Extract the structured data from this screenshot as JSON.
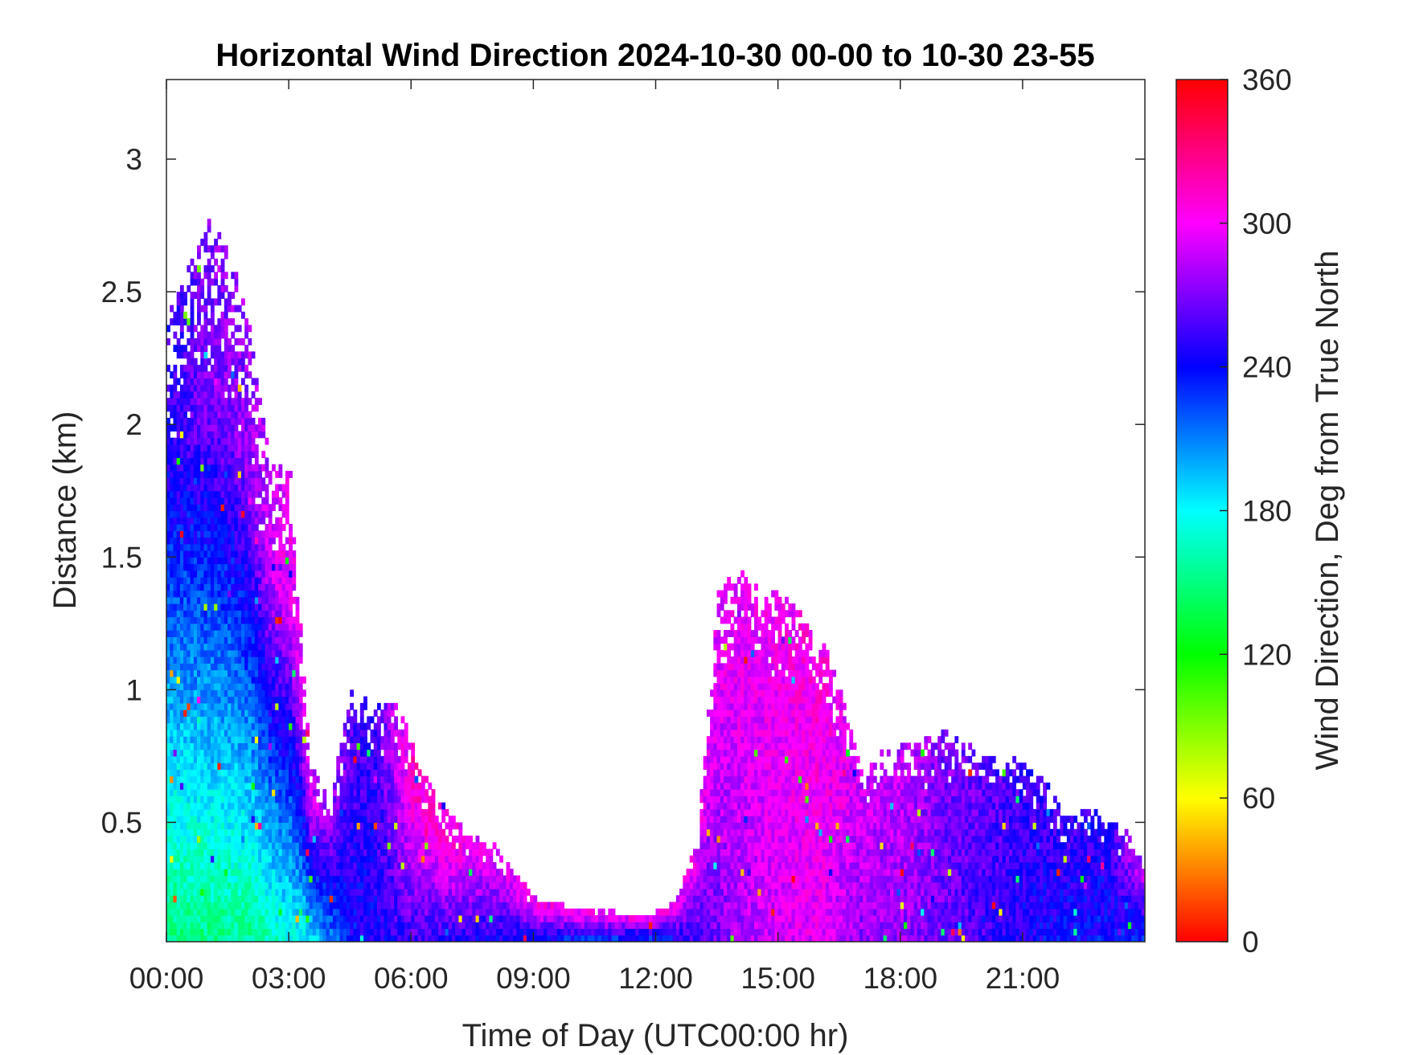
{
  "chart_data": {
    "type": "heatmap",
    "title": "Horizontal Wind Direction 2024-10-30 00-00 to 10-30 23-55",
    "xlabel": "Time of Day (UTC00:00 hr)",
    "ylabel": "Distance (km)",
    "colorbar_label": "Wind Direction, Deg from True North",
    "x_range_hours": [
      0,
      24
    ],
    "y_range_km": [
      0.05,
      3.3
    ],
    "x_ticks": [
      0,
      3,
      6,
      9,
      12,
      15,
      18,
      21
    ],
    "x_tick_labels": [
      "00:00",
      "03:00",
      "06:00",
      "09:00",
      "12:00",
      "15:00",
      "18:00",
      "21:00"
    ],
    "y_ticks": [
      0.5,
      1,
      1.5,
      2,
      2.5,
      3
    ],
    "y_tick_labels": [
      "0.5",
      "1",
      "1.5",
      "2",
      "2.5",
      "3"
    ],
    "colorbar_range": [
      0,
      360
    ],
    "colorbar_ticks": [
      0,
      60,
      120,
      180,
      240,
      300,
      360
    ],
    "colorbar_tick_labels": [
      "0",
      "60",
      "120",
      "180",
      "240",
      "300",
      "360"
    ],
    "colormap": [
      "#ff0000",
      "#ffff00",
      "#00ff00",
      "#00ffff",
      "#0000ff",
      "#ff00ff",
      "#ff0000"
    ],
    "time_step_minutes": 5,
    "range_gate_km": 0.025,
    "data_top_height_km": [
      [
        0.0,
        2.4
      ],
      [
        1.0,
        2.75
      ],
      [
        1.5,
        2.65
      ],
      [
        2.0,
        2.35
      ],
      [
        2.5,
        1.85
      ],
      [
        3.0,
        1.8
      ],
      [
        3.5,
        0.7
      ],
      [
        4.0,
        0.6
      ],
      [
        4.5,
        1.0
      ],
      [
        5.0,
        0.95
      ],
      [
        5.5,
        0.95
      ],
      [
        6.0,
        0.8
      ],
      [
        6.5,
        0.6
      ],
      [
        7.0,
        0.5
      ],
      [
        7.5,
        0.45
      ],
      [
        8.0,
        0.4
      ],
      [
        9.0,
        0.2
      ],
      [
        10.0,
        0.17
      ],
      [
        11.0,
        0.15
      ],
      [
        12.0,
        0.15
      ],
      [
        12.5,
        0.2
      ],
      [
        13.0,
        0.45
      ],
      [
        13.5,
        1.35
      ],
      [
        14.0,
        1.45
      ],
      [
        14.5,
        1.4
      ],
      [
        15.0,
        1.35
      ],
      [
        15.5,
        1.3
      ],
      [
        16.0,
        1.2
      ],
      [
        16.5,
        1.0
      ],
      [
        17.0,
        0.7
      ],
      [
        17.5,
        0.75
      ],
      [
        18.0,
        0.8
      ],
      [
        18.5,
        0.8
      ],
      [
        19.0,
        0.85
      ],
      [
        19.5,
        0.8
      ],
      [
        20.0,
        0.75
      ],
      [
        20.5,
        0.75
      ],
      [
        21.0,
        0.7
      ],
      [
        21.5,
        0.65
      ],
      [
        22.0,
        0.5
      ],
      [
        22.5,
        0.55
      ],
      [
        23.0,
        0.5
      ],
      [
        23.5,
        0.45
      ],
      [
        24.0,
        0.35
      ]
    ],
    "dominant_direction_deg": [
      [
        0.0,
        150
      ],
      [
        2.0,
        155
      ],
      [
        3.5,
        185
      ],
      [
        4.5,
        240
      ],
      [
        6.0,
        255
      ],
      [
        8.0,
        245
      ],
      [
        10.0,
        235
      ],
      [
        12.0,
        235
      ],
      [
        13.0,
        255
      ],
      [
        14.0,
        280
      ],
      [
        15.0,
        290
      ],
      [
        16.0,
        295
      ],
      [
        17.0,
        275
      ],
      [
        18.0,
        275
      ],
      [
        19.0,
        265
      ],
      [
        20.0,
        255
      ],
      [
        21.0,
        245
      ],
      [
        22.0,
        240
      ],
      [
        23.0,
        238
      ],
      [
        24.0,
        235
      ]
    ],
    "aloft_direction_deg": [
      [
        0.0,
        250
      ],
      [
        1.0,
        270
      ],
      [
        2.0,
        275
      ],
      [
        3.0,
        300
      ],
      [
        5.0,
        250
      ],
      [
        6.0,
        310
      ],
      [
        7.0,
        305
      ],
      [
        8.0,
        290
      ],
      [
        9.0,
        300
      ],
      [
        13.0,
        295
      ],
      [
        15.0,
        300
      ],
      [
        16.0,
        305
      ],
      [
        17.0,
        290
      ],
      [
        18.0,
        285
      ],
      [
        19.0,
        270
      ],
      [
        21.0,
        255
      ],
      [
        23.0,
        250
      ],
      [
        24.0,
        290
      ]
    ]
  }
}
